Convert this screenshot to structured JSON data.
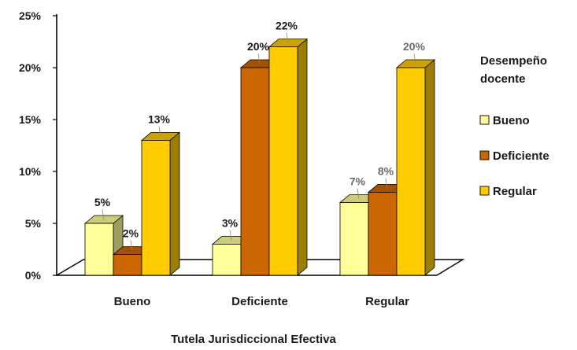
{
  "chart_data": {
    "type": "bar",
    "x_title": "Tutela Jurisdiccional Efectiva",
    "legend_title_lines": [
      "Desempeño",
      "docente"
    ],
    "categories": [
      "Bueno",
      "Deficiente",
      "Regular"
    ],
    "series": [
      {
        "name": "Bueno",
        "color": "#FFFF99",
        "values": [
          5,
          3,
          7
        ],
        "labels": [
          "5%",
          "3%",
          "7%"
        ]
      },
      {
        "name": "Deficiente",
        "color": "#CC6600",
        "values": [
          2,
          20,
          8
        ],
        "labels": [
          "2%",
          "20%",
          "8%"
        ]
      },
      {
        "name": "Regular",
        "color": "#FFCC00",
        "values": [
          13,
          22,
          20
        ],
        "labels": [
          "13%",
          "22%",
          "20%"
        ]
      }
    ],
    "y_ticks": [
      "0%",
      "5%",
      "10%",
      "15%",
      "20%",
      "25%"
    ],
    "ylim": [
      0,
      25
    ],
    "grid": false,
    "legend_position": "right",
    "three_d": true
  }
}
